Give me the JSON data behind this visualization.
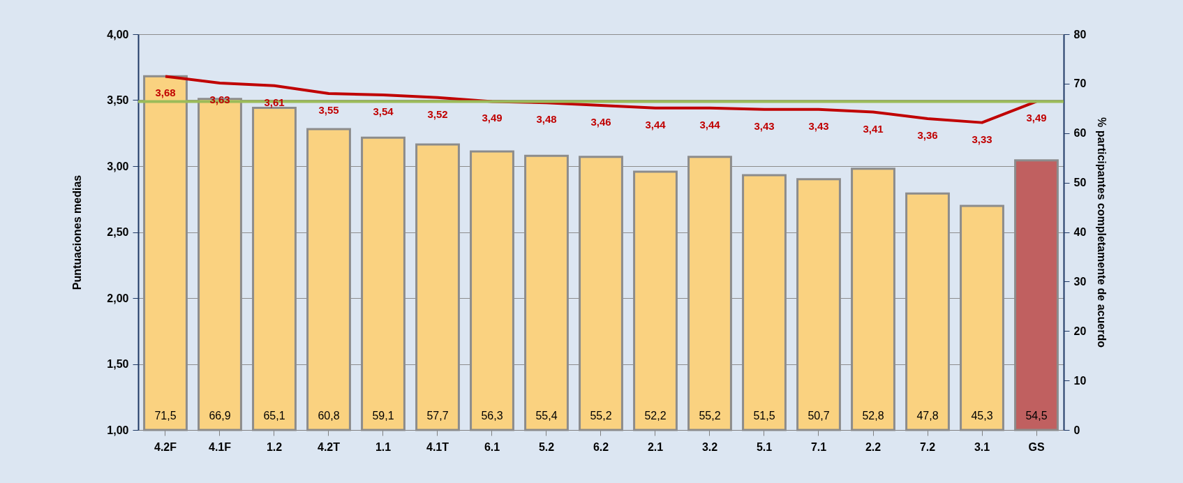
{
  "chart_data": {
    "type": "bar",
    "categories": [
      "4.2F",
      "4.1F",
      "1.2",
      "4.2T",
      "1.1",
      "4.1T",
      "6.1",
      "5.2",
      "6.2",
      "2.1",
      "3.2",
      "5.1",
      "7.1",
      "2.2",
      "7.2",
      "3.1",
      "GS"
    ],
    "ylabel": "Puntuaciones medias",
    "y2label": "% participantes completamente de acuerdo",
    "ylim": [
      1,
      4
    ],
    "yticks": [
      {
        "value": 1,
        "label": "1,00"
      },
      {
        "value": 1.5,
        "label": "1,50"
      },
      {
        "value": 2,
        "label": "2,00"
      },
      {
        "value": 2.5,
        "label": "2,50"
      },
      {
        "value": 3,
        "label": "3,00"
      },
      {
        "value": 3.5,
        "label": "3,50"
      },
      {
        "value": 4,
        "label": "4,00"
      }
    ],
    "y2lim": [
      0,
      80
    ],
    "y2ticks": [
      0,
      10,
      20,
      30,
      40,
      50,
      60,
      70,
      80
    ],
    "grid": "y",
    "series": [
      {
        "axis": "y2",
        "colors": [
          "#fad280",
          "#fad280",
          "#fad280",
          "#fad280",
          "#fad280",
          "#fad280",
          "#fad280",
          "#fad280",
          "#fad280",
          "#fad280",
          "#fad280",
          "#fad280",
          "#fad280",
          "#fad280",
          "#fad280",
          "#fad280",
          "#c06060"
        ],
        "values": [
          71.5,
          66.9,
          65.1,
          60.8,
          59.1,
          57.7,
          56.3,
          55.4,
          55.2,
          52.2,
          55.2,
          51.5,
          50.7,
          52.8,
          47.8,
          45.3,
          54.5
        ],
        "value_labels": [
          "71,5",
          "66,9",
          "65,1",
          "60,8",
          "59,1",
          "57,7",
          "56,3",
          "55,4",
          "55,2",
          "52,2",
          "55,2",
          "51,5",
          "50,7",
          "52,8",
          "47,8",
          "45,3",
          "54,5"
        ]
      },
      {
        "type": "line",
        "color": "#c00000",
        "values": [
          3.68,
          3.63,
          3.61,
          3.55,
          3.54,
          3.52,
          3.49,
          3.48,
          3.46,
          3.44,
          3.44,
          3.43,
          3.43,
          3.41,
          3.36,
          3.33,
          3.49
        ],
        "value_labels": [
          "3,68",
          "3,63",
          "3,61",
          "3,55",
          "3,54",
          "3,52",
          "3,49",
          "3,48",
          "3,46",
          "3,44",
          "3,44",
          "3,43",
          "3,43",
          "3,41",
          "3,36",
          "3,33",
          "3,49"
        ]
      }
    ],
    "ref_lines": [
      {
        "axis": "y",
        "value": 3.49,
        "color": "#9bbb59"
      }
    ]
  }
}
